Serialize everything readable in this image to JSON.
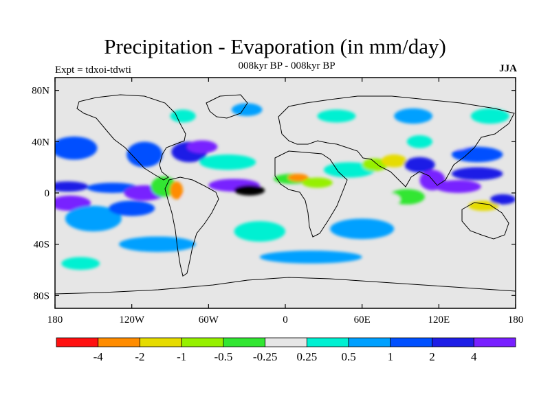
{
  "title": "Precipitation - Evaporation (in mm/day)",
  "subtitle": "008kyr BP - 008kyr BP",
  "experiment": "Expt = tdxoi-tdwti",
  "season": "JJA",
  "map": {
    "projection": "equirectangular",
    "lon_range": [
      -180,
      180
    ],
    "lat_range": [
      -90,
      90
    ],
    "lat_ticks": [
      {
        "value": 80,
        "label": "80N"
      },
      {
        "value": 40,
        "label": "40N"
      },
      {
        "value": 0,
        "label": "0"
      },
      {
        "value": -40,
        "label": "40S"
      },
      {
        "value": -80,
        "label": "80S"
      }
    ],
    "lon_ticks": [
      {
        "value": -180,
        "label": "180"
      },
      {
        "value": -120,
        "label": "120W"
      },
      {
        "value": -60,
        "label": "60W"
      },
      {
        "value": 0,
        "label": "0"
      },
      {
        "value": 60,
        "label": "60E"
      },
      {
        "value": 120,
        "label": "120E"
      },
      {
        "value": 180,
        "label": "180"
      }
    ],
    "background_color": "#e6e6e6",
    "regions": [
      {
        "lon": -165,
        "lat": 35,
        "rx": 18,
        "ry": 9,
        "level": 8
      },
      {
        "lon": -110,
        "lat": 30,
        "rx": 14,
        "ry": 10,
        "level": 8
      },
      {
        "lon": -75,
        "lat": 32,
        "rx": 14,
        "ry": 8,
        "level": 9
      },
      {
        "lon": -65,
        "lat": 36,
        "rx": 12,
        "ry": 5,
        "level": 10
      },
      {
        "lon": -45,
        "lat": 24,
        "rx": 22,
        "ry": 6,
        "level": 6
      },
      {
        "lon": -170,
        "lat": 5,
        "rx": 16,
        "ry": 4,
        "level": 9
      },
      {
        "lon": -135,
        "lat": 4,
        "rx": 20,
        "ry": 4,
        "level": 8
      },
      {
        "lon": -110,
        "lat": 0,
        "rx": 16,
        "ry": 6,
        "level": 10
      },
      {
        "lon": -95,
        "lat": 5,
        "rx": 10,
        "ry": 8,
        "level": 4
      },
      {
        "lon": -85,
        "lat": 2,
        "rx": 5,
        "ry": 7,
        "level": 1
      },
      {
        "lon": -168,
        "lat": -8,
        "rx": 16,
        "ry": 6,
        "level": 10
      },
      {
        "lon": -150,
        "lat": -20,
        "rx": 22,
        "ry": 10,
        "level": 7
      },
      {
        "lon": -120,
        "lat": -12,
        "rx": 18,
        "ry": 6,
        "level": 8
      },
      {
        "lon": -65,
        "lat": -5,
        "rx": 16,
        "ry": 6,
        "level": 5
      },
      {
        "lon": -40,
        "lat": 6,
        "rx": 20,
        "ry": 5,
        "level": 10
      },
      {
        "lon": -28,
        "lat": 2,
        "rx": 12,
        "ry": 4,
        "level": 11
      },
      {
        "lon": 5,
        "lat": 11,
        "rx": 14,
        "ry": 4,
        "level": 4
      },
      {
        "lon": 10,
        "lat": 12,
        "rx": 8,
        "ry": 3,
        "level": 1
      },
      {
        "lon": 25,
        "lat": 8,
        "rx": 12,
        "ry": 4,
        "level": 3
      },
      {
        "lon": 50,
        "lat": 18,
        "rx": 20,
        "ry": 6,
        "level": 6
      },
      {
        "lon": 70,
        "lat": 22,
        "rx": 10,
        "ry": 5,
        "level": 3
      },
      {
        "lon": 85,
        "lat": 25,
        "rx": 10,
        "ry": 5,
        "level": 2
      },
      {
        "lon": 105,
        "lat": 22,
        "rx": 12,
        "ry": 6,
        "level": 9
      },
      {
        "lon": 115,
        "lat": 10,
        "rx": 10,
        "ry": 8,
        "level": 10
      },
      {
        "lon": 135,
        "lat": 5,
        "rx": 18,
        "ry": 5,
        "level": 10
      },
      {
        "lon": 150,
        "lat": 15,
        "rx": 20,
        "ry": 5,
        "level": 9
      },
      {
        "lon": 150,
        "lat": 30,
        "rx": 20,
        "ry": 6,
        "level": 8
      },
      {
        "lon": 135,
        "lat": 40,
        "rx": 10,
        "ry": 6,
        "level": 5
      },
      {
        "lon": 105,
        "lat": 40,
        "rx": 10,
        "ry": 5,
        "level": 6
      },
      {
        "lon": 95,
        "lat": -3,
        "rx": 14,
        "ry": 6,
        "level": 4
      },
      {
        "lon": 80,
        "lat": -5,
        "rx": 10,
        "ry": 5,
        "level": 5
      },
      {
        "lon": 155,
        "lat": -10,
        "rx": 12,
        "ry": 4,
        "level": 2
      },
      {
        "lon": 170,
        "lat": -5,
        "rx": 10,
        "ry": 4,
        "level": 9
      },
      {
        "lon": -20,
        "lat": -30,
        "rx": 20,
        "ry": 8,
        "level": 6
      },
      {
        "lon": 60,
        "lat": -28,
        "rx": 25,
        "ry": 8,
        "level": 7
      },
      {
        "lon": -100,
        "lat": -40,
        "rx": 30,
        "ry": 6,
        "level": 7
      },
      {
        "lon": 20,
        "lat": -50,
        "rx": 40,
        "ry": 5,
        "level": 7
      },
      {
        "lon": -160,
        "lat": -55,
        "rx": 15,
        "ry": 5,
        "level": 6
      },
      {
        "lon": -80,
        "lat": 60,
        "rx": 10,
        "ry": 5,
        "level": 6
      },
      {
        "lon": -30,
        "lat": 65,
        "rx": 12,
        "ry": 5,
        "level": 7
      },
      {
        "lon": 40,
        "lat": 60,
        "rx": 15,
        "ry": 5,
        "level": 6
      },
      {
        "lon": 100,
        "lat": 60,
        "rx": 15,
        "ry": 6,
        "level": 7
      },
      {
        "lon": 160,
        "lat": 60,
        "rx": 15,
        "ry": 6,
        "level": 6
      }
    ]
  },
  "colorbar": {
    "colors": [
      "#ff1010",
      "#ff8c00",
      "#e6dc00",
      "#96f000",
      "#32e632",
      "#e6e6e6",
      "#00f0d2",
      "#00a0ff",
      "#0050ff",
      "#1e1ee6",
      "#7820ff"
    ],
    "labels": [
      "-4",
      "-2",
      "-1",
      "-0.5",
      "-0.25",
      "0.25",
      "0.5",
      "1",
      "2",
      "4"
    ]
  }
}
